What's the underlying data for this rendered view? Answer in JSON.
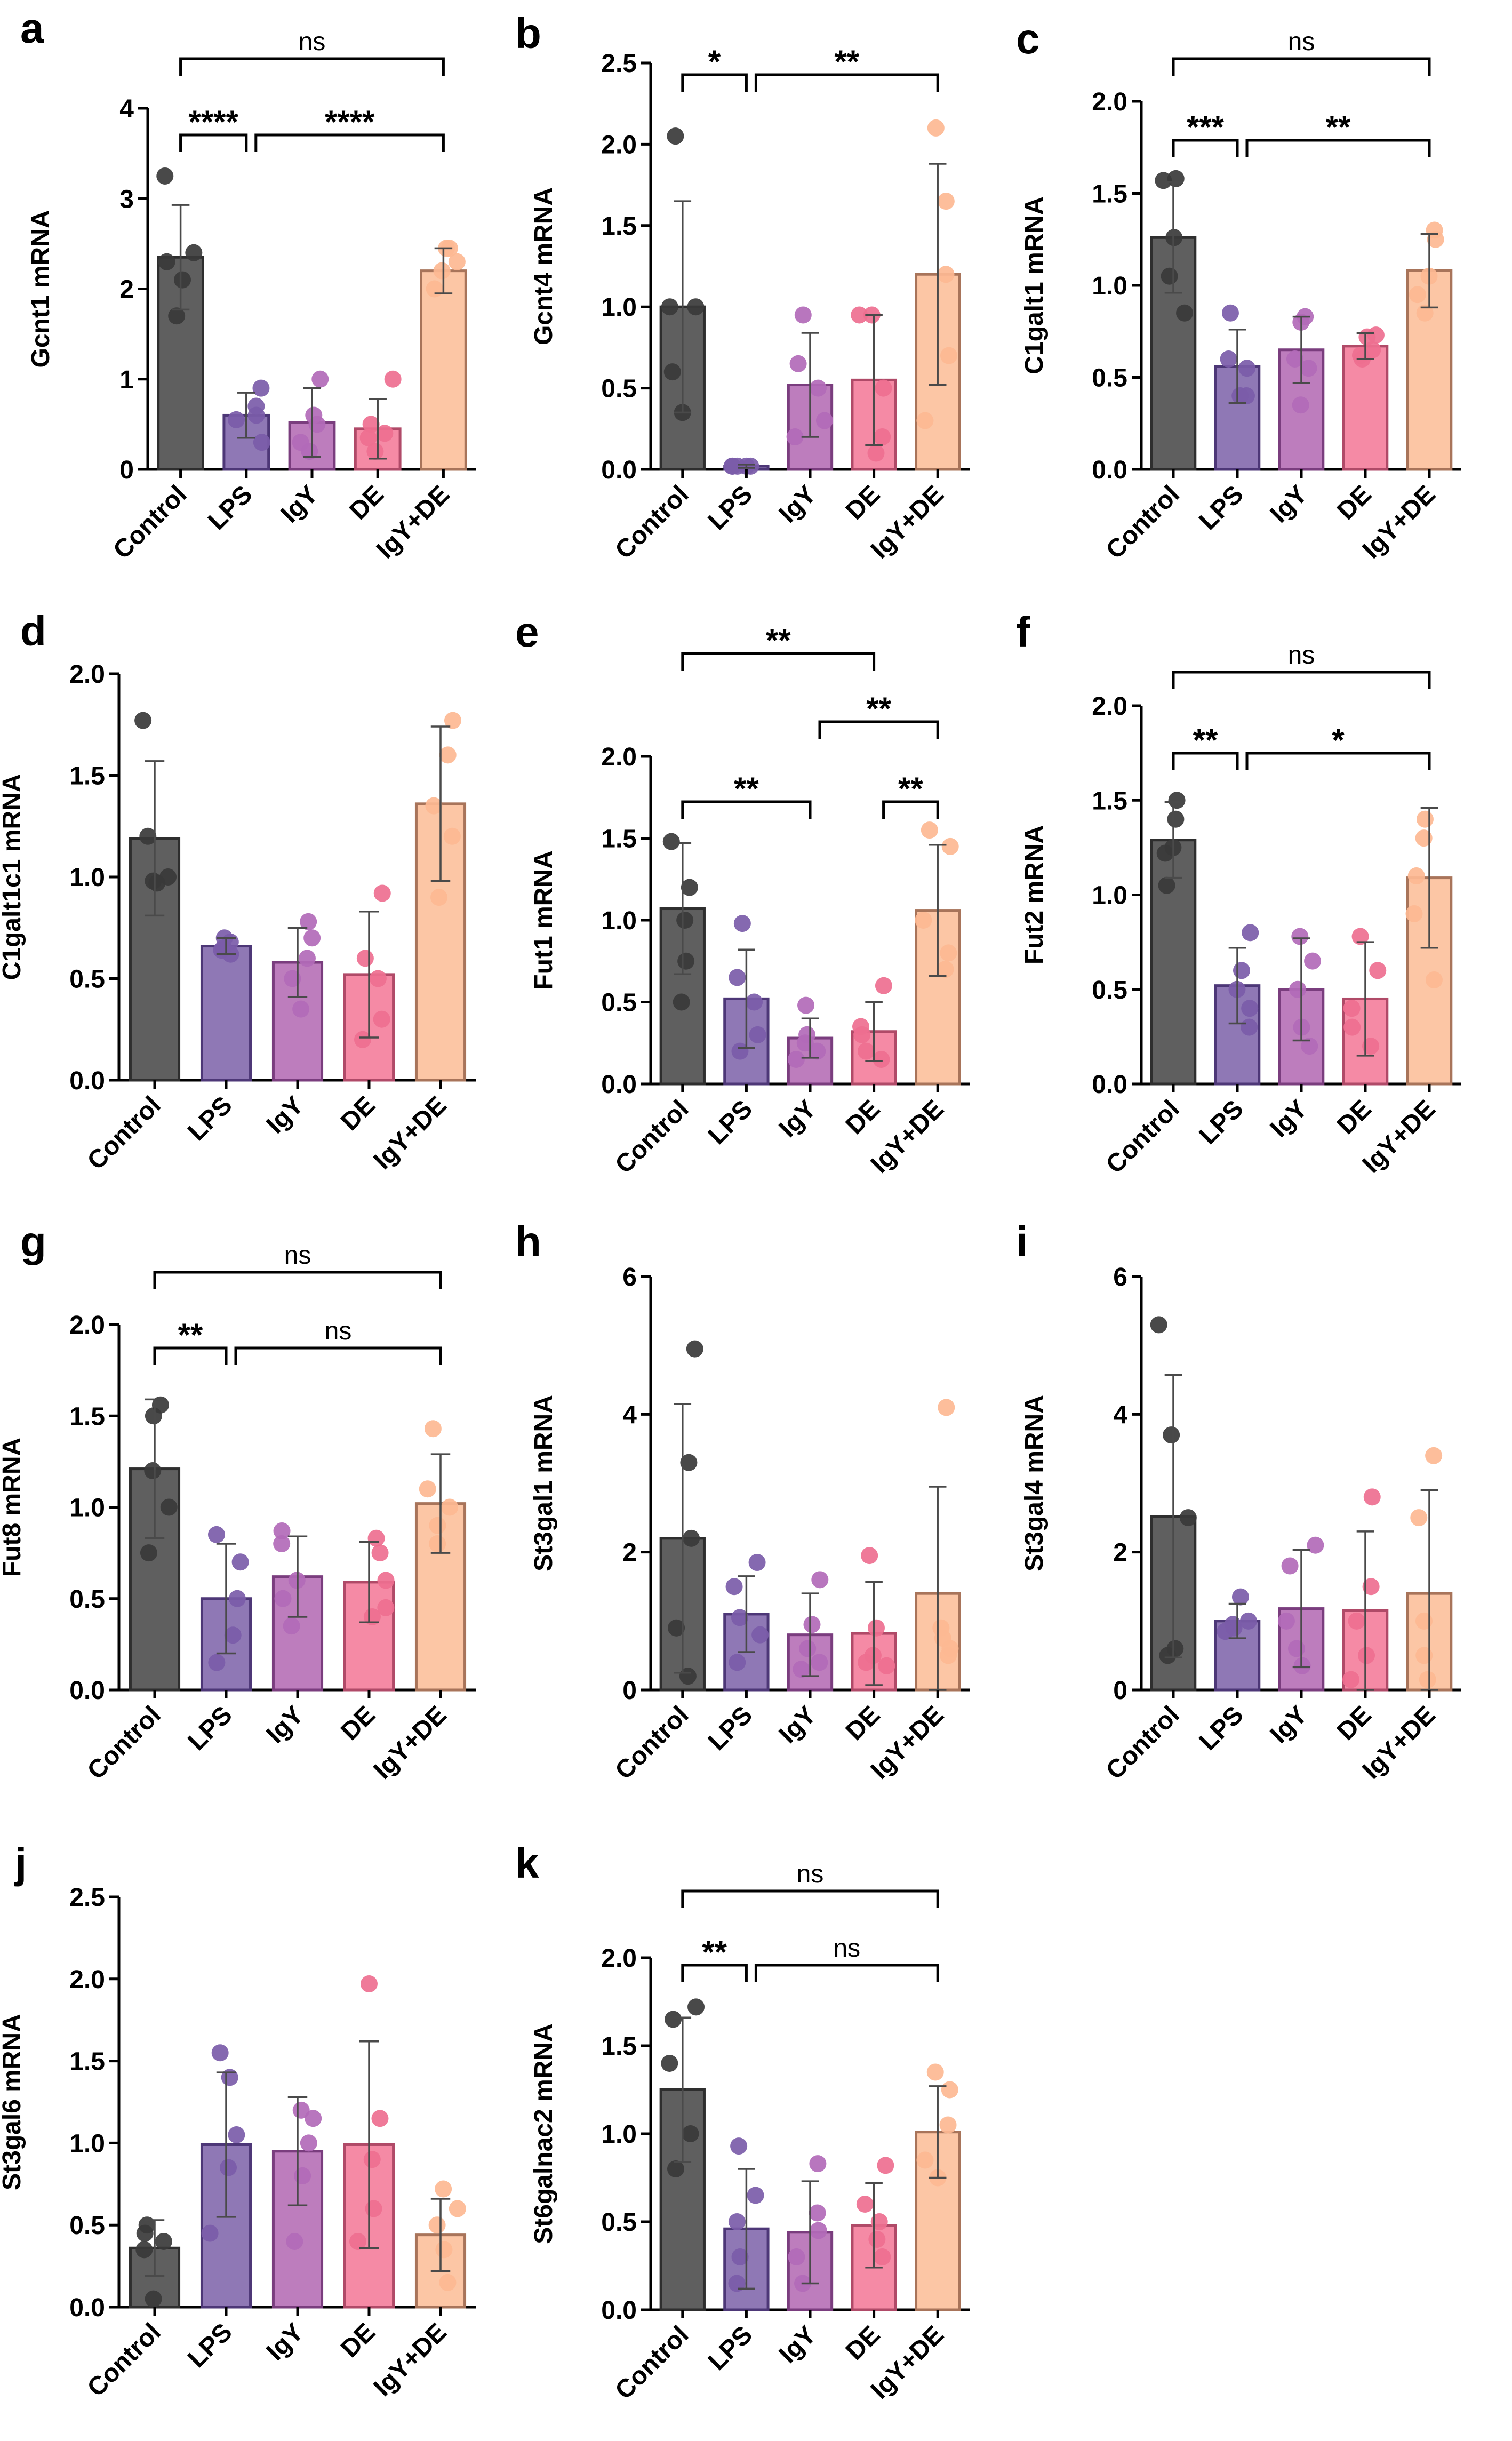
{
  "figure": {
    "categories": [
      "Control",
      "LPS",
      "IgY",
      "DE",
      "IgY+DE"
    ],
    "colors": {
      "bar_fill": [
        "#5f5f5f",
        "#8f78b5",
        "#bd7dbd",
        "#f58aa5",
        "#fcc6a5"
      ],
      "bar_stroke": [
        "#2e2e2e",
        "#4d3777",
        "#7a3d7e",
        "#b04a68",
        "#a8745a"
      ],
      "dot": [
        "#3a3a3a",
        "#7b5ca9",
        "#b26ab8",
        "#ee6f90",
        "#fdb892"
      ],
      "axis": "#000000",
      "error": "#4a4a4a"
    }
  },
  "chart_data": [
    {
      "panel": "a",
      "type": "bar",
      "ylabel": "Gcnt1 mRNA",
      "ylim": [
        0,
        4
      ],
      "yticks": [
        "0",
        "1",
        "2",
        "3",
        "4"
      ],
      "categories": [
        "Control",
        "LPS",
        "IgY",
        "DE",
        "IgY+DE"
      ],
      "values": [
        2.35,
        0.6,
        0.52,
        0.45,
        2.2
      ],
      "errors": [
        0.58,
        0.25,
        0.38,
        0.33,
        0.25
      ],
      "points": [
        [
          3.25,
          2.4,
          2.3,
          2.1,
          1.7
        ],
        [
          0.9,
          0.6,
          0.55,
          0.3,
          0.7
        ],
        [
          1.0,
          0.6,
          0.5,
          0.2,
          0.3
        ],
        [
          1.0,
          0.4,
          0.5,
          0.2,
          0.35
        ],
        [
          2.45,
          2.3,
          2.2,
          2.0,
          2.45
        ]
      ],
      "brackets": [
        {
          "from": 0,
          "to": 4,
          "label": "ns"
        },
        {
          "from": 0,
          "to": 1,
          "label": "****"
        },
        {
          "from": 1,
          "to": 4,
          "label": "****"
        }
      ]
    },
    {
      "panel": "b",
      "type": "bar",
      "ylabel": "Gcnt4 mRNA",
      "ylim": [
        0,
        2.5
      ],
      "yticks": [
        "0.0",
        "0.5",
        "1.0",
        "1.5",
        "2.0",
        "2.5"
      ],
      "categories": [
        "Control",
        "LPS",
        "IgY",
        "DE",
        "IgY+DE"
      ],
      "values": [
        1.0,
        0.02,
        0.52,
        0.55,
        1.2
      ],
      "errors": [
        0.65,
        0.01,
        0.32,
        0.4,
        0.68
      ],
      "points": [
        [
          2.05,
          1.0,
          1.0,
          0.6,
          0.35
        ],
        [
          0.02,
          0.02,
          0.02,
          0.02,
          0.02
        ],
        [
          0.95,
          0.5,
          0.3,
          0.65,
          0.2
        ],
        [
          0.95,
          0.5,
          0.2,
          0.95,
          0.1
        ],
        [
          2.1,
          1.65,
          1.2,
          0.7,
          0.3
        ]
      ],
      "brackets": [
        {
          "from": 0,
          "to": 1,
          "label": "*"
        },
        {
          "from": 1,
          "to": 4,
          "label": "**"
        }
      ]
    },
    {
      "panel": "c",
      "type": "bar",
      "ylabel": "C1galt1 mRNA",
      "ylim": [
        0,
        2.0
      ],
      "yticks": [
        "0.0",
        "0.5",
        "1.0",
        "1.5",
        "2.0"
      ],
      "categories": [
        "Control",
        "LPS",
        "IgY",
        "DE",
        "IgY+DE"
      ],
      "values": [
        1.26,
        0.56,
        0.65,
        0.67,
        1.08
      ],
      "errors": [
        0.3,
        0.2,
        0.18,
        0.07,
        0.2
      ],
      "points": [
        [
          1.58,
          1.57,
          1.26,
          1.05,
          0.85
        ],
        [
          0.85,
          0.6,
          0.55,
          0.4,
          0.4
        ],
        [
          0.83,
          0.8,
          0.6,
          0.55,
          0.35
        ],
        [
          0.73,
          0.72,
          0.65,
          0.6,
          0.62
        ],
        [
          1.3,
          1.25,
          1.05,
          0.95,
          0.85
        ]
      ],
      "brackets": [
        {
          "from": 0,
          "to": 4,
          "label": "ns"
        },
        {
          "from": 0,
          "to": 1,
          "label": "***"
        },
        {
          "from": 1,
          "to": 4,
          "label": "**"
        }
      ]
    },
    {
      "panel": "d",
      "type": "bar",
      "ylabel": "C1galt1c1 mRNA",
      "ylim": [
        0,
        2.0
      ],
      "yticks": [
        "0.0",
        "0.5",
        "1.0",
        "1.5",
        "2.0"
      ],
      "categories": [
        "Control",
        "LPS",
        "IgY",
        "DE",
        "IgY+DE"
      ],
      "values": [
        1.19,
        0.66,
        0.58,
        0.52,
        1.36
      ],
      "errors": [
        0.38,
        0.04,
        0.17,
        0.31,
        0.38
      ],
      "points": [
        [
          1.77,
          1.2,
          1.0,
          0.98,
          0.97
        ],
        [
          0.7,
          0.68,
          0.65,
          0.64,
          0.62
        ],
        [
          0.78,
          0.7,
          0.6,
          0.5,
          0.35
        ],
        [
          0.92,
          0.6,
          0.5,
          0.3,
          0.2
        ],
        [
          1.77,
          1.6,
          1.35,
          1.2,
          0.9
        ]
      ],
      "brackets": []
    },
    {
      "panel": "e",
      "type": "bar",
      "ylabel": "Fut1 mRNA",
      "ylim": [
        0,
        2.0
      ],
      "yticks": [
        "0.0",
        "0.5",
        "1.0",
        "1.5",
        "2.0"
      ],
      "categories": [
        "Control",
        "LPS",
        "IgY",
        "DE",
        "IgY+DE"
      ],
      "values": [
        1.07,
        0.52,
        0.28,
        0.32,
        1.06
      ],
      "errors": [
        0.4,
        0.3,
        0.12,
        0.18,
        0.4
      ],
      "points": [
        [
          1.48,
          1.2,
          1.0,
          0.75,
          0.5
        ],
        [
          0.98,
          0.65,
          0.5,
          0.3,
          0.2
        ],
        [
          0.48,
          0.3,
          0.25,
          0.2,
          0.15
        ],
        [
          0.6,
          0.35,
          0.3,
          0.2,
          0.15
        ],
        [
          1.55,
          1.45,
          1.0,
          0.8,
          0.7
        ]
      ],
      "brackets": [
        {
          "from": 0,
          "to": 3,
          "label": "**"
        },
        {
          "from": 2,
          "to": 4,
          "label": "**"
        },
        {
          "from": 0,
          "to": 2,
          "label": "**"
        },
        {
          "from": 3,
          "to": 4,
          "label": "**"
        }
      ]
    },
    {
      "panel": "f",
      "type": "bar",
      "ylabel": "Fut2 mRNA",
      "ylim": [
        0,
        2.0
      ],
      "yticks": [
        "0.0",
        "0.5",
        "1.0",
        "1.5",
        "2.0"
      ],
      "categories": [
        "Control",
        "LPS",
        "IgY",
        "DE",
        "IgY+DE"
      ],
      "values": [
        1.29,
        0.52,
        0.5,
        0.45,
        1.09
      ],
      "errors": [
        0.2,
        0.2,
        0.27,
        0.3,
        0.37
      ],
      "points": [
        [
          1.5,
          1.4,
          1.25,
          1.22,
          1.05
        ],
        [
          0.8,
          0.6,
          0.5,
          0.4,
          0.3
        ],
        [
          0.78,
          0.65,
          0.5,
          0.3,
          0.2
        ],
        [
          0.78,
          0.6,
          0.4,
          0.3,
          0.2
        ],
        [
          1.4,
          1.3,
          1.1,
          0.9,
          0.55
        ]
      ],
      "brackets": [
        {
          "from": 0,
          "to": 4,
          "label": "ns"
        },
        {
          "from": 0,
          "to": 1,
          "label": "**"
        },
        {
          "from": 1,
          "to": 4,
          "label": "*"
        }
      ]
    },
    {
      "panel": "g",
      "type": "bar",
      "ylabel": "Fut8 mRNA",
      "ylim": [
        0,
        2.0
      ],
      "yticks": [
        "0.0",
        "0.5",
        "1.0",
        "1.5",
        "2.0"
      ],
      "categories": [
        "Control",
        "LPS",
        "IgY",
        "DE",
        "IgY+DE"
      ],
      "values": [
        1.21,
        0.5,
        0.62,
        0.59,
        1.02
      ],
      "errors": [
        0.38,
        0.3,
        0.22,
        0.22,
        0.27
      ],
      "points": [
        [
          1.56,
          1.5,
          1.2,
          1.0,
          0.75
        ],
        [
          0.85,
          0.7,
          0.5,
          0.3,
          0.15
        ],
        [
          0.87,
          0.8,
          0.6,
          0.5,
          0.35
        ],
        [
          0.83,
          0.75,
          0.6,
          0.45,
          0.4
        ],
        [
          1.43,
          1.1,
          1.0,
          0.9,
          0.8
        ]
      ],
      "brackets": [
        {
          "from": 0,
          "to": 4,
          "label": "ns"
        },
        {
          "from": 0,
          "to": 1,
          "label": "**"
        },
        {
          "from": 1,
          "to": 4,
          "label": "ns"
        }
      ]
    },
    {
      "panel": "h",
      "type": "bar",
      "ylabel": "St3gal1 mRNA",
      "ylim": [
        0,
        6
      ],
      "yticks": [
        "0",
        "2",
        "4",
        "6"
      ],
      "categories": [
        "Control",
        "LPS",
        "IgY",
        "DE",
        "IgY+DE"
      ],
      "values": [
        2.2,
        1.1,
        0.8,
        0.82,
        1.4
      ],
      "errors": [
        1.95,
        0.55,
        0.6,
        0.75,
        1.55
      ],
      "points": [
        [
          4.95,
          3.3,
          2.2,
          0.9,
          0.2
        ],
        [
          1.85,
          1.5,
          1.05,
          0.8,
          0.4
        ],
        [
          1.6,
          0.95,
          0.6,
          0.4,
          0.3
        ],
        [
          1.95,
          0.9,
          0.5,
          0.4,
          0.35
        ],
        [
          4.1,
          0.9,
          0.75,
          0.6,
          0.5
        ]
      ],
      "brackets": []
    },
    {
      "panel": "i",
      "type": "bar",
      "ylabel": "St3gal4 mRNA",
      "ylim": [
        0,
        6
      ],
      "yticks": [
        "0",
        "2",
        "4",
        "6"
      ],
      "categories": [
        "Control",
        "LPS",
        "IgY",
        "DE",
        "IgY+DE"
      ],
      "values": [
        2.52,
        1.0,
        1.18,
        1.15,
        1.4
      ],
      "errors": [
        2.05,
        0.25,
        0.85,
        1.15,
        1.5
      ],
      "points": [
        [
          5.3,
          3.7,
          2.5,
          0.6,
          0.5
        ],
        [
          1.35,
          1.0,
          0.95,
          0.9,
          0.85
        ],
        [
          2.1,
          1.8,
          1.0,
          0.6,
          0.35
        ],
        [
          2.8,
          1.5,
          1.0,
          0.5,
          0.15
        ],
        [
          3.4,
          2.5,
          1.0,
          0.5,
          0.15
        ]
      ],
      "brackets": []
    },
    {
      "panel": "j",
      "type": "bar",
      "ylabel": "St3gal6 mRNA",
      "ylim": [
        0,
        2.5
      ],
      "yticks": [
        "0.0",
        "0.5",
        "1.0",
        "1.5",
        "2.0",
        "2.5"
      ],
      "categories": [
        "Control",
        "LPS",
        "IgY",
        "DE",
        "IgY+DE"
      ],
      "values": [
        0.36,
        0.99,
        0.95,
        0.99,
        0.44
      ],
      "errors": [
        0.17,
        0.44,
        0.33,
        0.63,
        0.22
      ],
      "points": [
        [
          0.5,
          0.45,
          0.4,
          0.35,
          0.05
        ],
        [
          1.55,
          1.4,
          1.05,
          0.85,
          0.45
        ],
        [
          1.2,
          1.15,
          1.0,
          0.8,
          0.4
        ],
        [
          1.97,
          1.15,
          0.9,
          0.6,
          0.4
        ],
        [
          0.72,
          0.6,
          0.5,
          0.35,
          0.15
        ]
      ],
      "brackets": []
    },
    {
      "panel": "k",
      "type": "bar",
      "ylabel": "St6galnac2 mRNA",
      "ylim": [
        0,
        2.0
      ],
      "yticks": [
        "0.0",
        "0.5",
        "1.0",
        "1.5",
        "2.0"
      ],
      "categories": [
        "Control",
        "LPS",
        "IgY",
        "DE",
        "IgY+DE"
      ],
      "values": [
        1.25,
        0.46,
        0.44,
        0.48,
        1.01
      ],
      "errors": [
        0.41,
        0.34,
        0.29,
        0.24,
        0.26
      ],
      "points": [
        [
          1.72,
          1.65,
          1.4,
          1.0,
          0.8
        ],
        [
          0.93,
          0.65,
          0.5,
          0.3,
          0.15
        ],
        [
          0.83,
          0.55,
          0.45,
          0.3,
          0.15
        ],
        [
          0.82,
          0.6,
          0.5,
          0.4,
          0.3
        ],
        [
          1.35,
          1.25,
          1.05,
          0.85,
          0.75
        ]
      ],
      "brackets": [
        {
          "from": 0,
          "to": 4,
          "label": "ns"
        },
        {
          "from": 0,
          "to": 1,
          "label": "**"
        },
        {
          "from": 1,
          "to": 4,
          "label": "ns"
        }
      ]
    }
  ]
}
